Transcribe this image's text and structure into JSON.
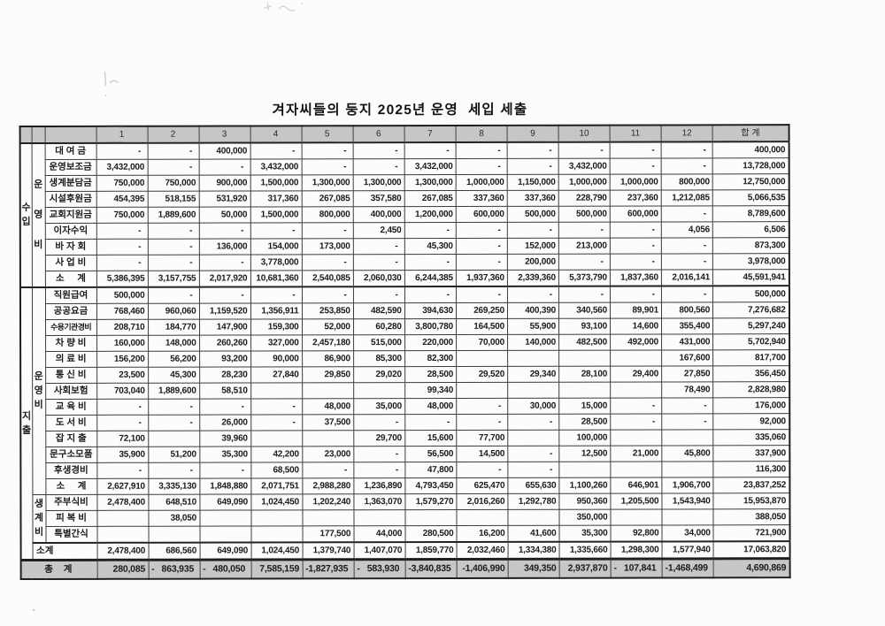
{
  "title": "겨자씨들의 둥지 2025년 운영  세입 세출",
  "table": {
    "month_headers": [
      "1",
      "2",
      "3",
      "4",
      "5",
      "6",
      "7",
      "8",
      "9",
      "10",
      "11",
      "12"
    ],
    "total_header": "합 계",
    "rows": [
      {
        "leads": [
          {
            "text": "수입",
            "span": 9,
            "cls": "sec"
          },
          {
            "text": "운영비",
            "span": 9,
            "cls": "grp wide"
          }
        ],
        "label": "대 여 금",
        "values": [
          "-",
          "-",
          "400,000",
          "-",
          "-",
          "-",
          "-",
          "-",
          "-",
          "-",
          "-",
          "-",
          "400,000"
        ]
      },
      {
        "label": "운영보조금",
        "values": [
          "3,432,000",
          "-",
          "-",
          "3,432,000",
          "-",
          "-",
          "3,432,000",
          "-",
          "-",
          "3,432,000",
          "-",
          "-",
          "13,728,000"
        ]
      },
      {
        "label": "생계분담금",
        "values": [
          "750,000",
          "750,000",
          "900,000",
          "1,500,000",
          "1,300,000",
          "1,300,000",
          "1,300,000",
          "1,000,000",
          "1,150,000",
          "1,000,000",
          "1,000,000",
          "800,000",
          "12,750,000"
        ]
      },
      {
        "label": "시설후원금",
        "values": [
          "454,395",
          "518,155",
          "531,920",
          "317,360",
          "267,085",
          "357,580",
          "267,085",
          "337,360",
          "337,360",
          "228,790",
          "237,360",
          "1,212,085",
          "5,066,535"
        ]
      },
      {
        "label": "교회지원금",
        "values": [
          "750,000",
          "1,889,600",
          "50,000",
          "1,500,000",
          "800,000",
          "400,000",
          "1,200,000",
          "600,000",
          "500,000",
          "500,000",
          "600,000",
          "-",
          "8,789,600"
        ]
      },
      {
        "label": "이자수익",
        "values": [
          "-",
          "-",
          "-",
          "-",
          "-",
          "2,450",
          "-",
          "-",
          "-",
          "-",
          "-",
          "4,056",
          "6,506"
        ]
      },
      {
        "label": "바 자 회",
        "values": [
          "-",
          "-",
          "136,000",
          "154,000",
          "173,000",
          "-",
          "45,300",
          "-",
          "152,000",
          "213,000",
          "-",
          "-",
          "873,300"
        ]
      },
      {
        "label": "사 업 비",
        "values": [
          "-",
          "-",
          "-",
          "3,778,000",
          "-",
          "-",
          "-",
          "-",
          "200,000",
          "-",
          "-",
          "-",
          "3,978,000"
        ]
      },
      {
        "label": "소     계",
        "row_cls": "sub",
        "values": [
          "5,386,395",
          "3,157,755",
          "2,017,920",
          "10,681,360",
          "2,540,085",
          "2,060,030",
          "6,244,385",
          "1,937,360",
          "2,339,360",
          "5,373,790",
          "1,837,360",
          "2,016,141",
          "45,591,941"
        ]
      },
      {
        "leads": [
          {
            "text": "지출",
            "span": 17,
            "cls": "sec"
          },
          {
            "text": "운영비",
            "span": 13,
            "cls": "grp"
          }
        ],
        "label": "직원급여",
        "row_cls": "divider",
        "values": [
          "500,000",
          "-",
          "-",
          "-",
          "-",
          "-",
          "-",
          "-",
          "-",
          "-",
          "-",
          "-",
          "500,000"
        ]
      },
      {
        "label": "공공요금",
        "values": [
          "768,460",
          "960,060",
          "1,159,520",
          "1,356,911",
          "253,850",
          "482,590",
          "394,630",
          "269,250",
          "400,390",
          "340,560",
          "89,901",
          "800,560",
          "7,276,682"
        ]
      },
      {
        "label": "수용기관경비",
        "values": [
          "208,710",
          "184,770",
          "147,900",
          "159,300",
          "52,000",
          "60,280",
          "3,800,780",
          "164,500",
          "55,900",
          "93,100",
          "14,600",
          "355,400",
          "5,297,240"
        ]
      },
      {
        "label": "차 량 비",
        "values": [
          "160,000",
          "148,000",
          "260,260",
          "327,000",
          "2,457,180",
          "515,000",
          "220,000",
          "70,000",
          "140,000",
          "482,500",
          "492,000",
          "431,000",
          "5,702,940"
        ]
      },
      {
        "label": "의 료 비",
        "values": [
          "156,200",
          "56,200",
          "93,200",
          "90,000",
          "86,900",
          "85,300",
          "82,300",
          "",
          "",
          "",
          "",
          "167,600",
          "817,700"
        ]
      },
      {
        "label": "통 신 비",
        "values": [
          "23,500",
          "45,300",
          "28,230",
          "27,840",
          "29,850",
          "29,020",
          "28,500",
          "29,520",
          "29,340",
          "28,100",
          "29,400",
          "27,850",
          "356,450"
        ]
      },
      {
        "label": "사회보험",
        "values": [
          "703,040",
          "1,889,600",
          "58,510",
          "",
          "",
          "",
          "99,340",
          "",
          "",
          "",
          "",
          "78,490",
          "2,828,980"
        ]
      },
      {
        "label": "교 육 비",
        "values": [
          "-",
          "-",
          "-",
          "-",
          "48,000",
          "35,000",
          "48,000",
          "-",
          "30,000",
          "15,000",
          "-",
          "-",
          "176,000"
        ]
      },
      {
        "label": "도 서 비",
        "values": [
          "-",
          "-",
          "26,000",
          "-",
          "37,500",
          "-",
          "-",
          "-",
          "-",
          "28,500",
          "-",
          "-",
          "92,000"
        ]
      },
      {
        "label": "잡 지 출",
        "values": [
          "72,100",
          "",
          "39,960",
          "",
          "",
          "29,700",
          "15,600",
          "77,700",
          "",
          "100,000",
          "",
          "",
          "335,060"
        ]
      },
      {
        "label": "문구소모품",
        "values": [
          "35,900",
          "51,200",
          "35,300",
          "42,200",
          "23,000",
          "-",
          "56,500",
          "14,500",
          "-",
          "12,500",
          "21,000",
          "45,800",
          "337,900"
        ]
      },
      {
        "label": "후생경비",
        "values": [
          "-",
          "-",
          "-",
          "68,500",
          "-",
          "-",
          "47,800",
          "-",
          "-",
          "",
          "",
          "",
          "116,300"
        ]
      },
      {
        "label": "소     계",
        "row_cls": "sub",
        "values": [
          "2,627,910",
          "3,335,130",
          "1,848,880",
          "2,071,751",
          "2,988,280",
          "1,236,890",
          "4,793,450",
          "625,470",
          "655,630",
          "1,100,260",
          "646,901",
          "1,906,700",
          "23,837,252"
        ]
      },
      {
        "leads": [
          {
            "text": "생계비",
            "span": 3,
            "cls": "grp"
          }
        ],
        "label": "주부식비",
        "values": [
          "2,478,400",
          "648,510",
          "649,090",
          "1,024,450",
          "1,202,240",
          "1,363,070",
          "1,579,270",
          "2,016,260",
          "1,292,780",
          "950,360",
          "1,205,500",
          "1,543,940",
          "15,953,870"
        ]
      },
      {
        "label": "피 복 비",
        "values": [
          "",
          "38,050",
          "",
          "",
          "",
          "",
          "",
          "",
          "",
          "350,000",
          "",
          "",
          "388,050"
        ]
      },
      {
        "label": "특별간식",
        "values": [
          "",
          "",
          "",
          "",
          "177,500",
          "44,000",
          "280,500",
          "16,200",
          "41,600",
          "35,300",
          "92,800",
          "34,000",
          "721,900"
        ]
      },
      {
        "label": "소계",
        "label_span": 2,
        "align": "left",
        "row_cls": "divider sub",
        "values": [
          "2,478,400",
          "686,560",
          "649,090",
          "1,024,450",
          "1,379,740",
          "1,407,070",
          "1,859,770",
          "2,032,460",
          "1,334,380",
          "1,335,660",
          "1,298,300",
          "1,577,940",
          "17,063,820"
        ]
      },
      {
        "label": "총  계",
        "label_span": 3,
        "row_cls": "grand",
        "values": [
          "280,085",
          "- 863,935",
          "- 480,050",
          "7,585,159",
          "- 1,827,935",
          "- 583,930",
          "- 3,840,835",
          "-1,406,990",
          "349,350",
          "2,937,870",
          "- 107,841",
          "- 1,468,499",
          "4,690,869"
        ]
      }
    ]
  }
}
